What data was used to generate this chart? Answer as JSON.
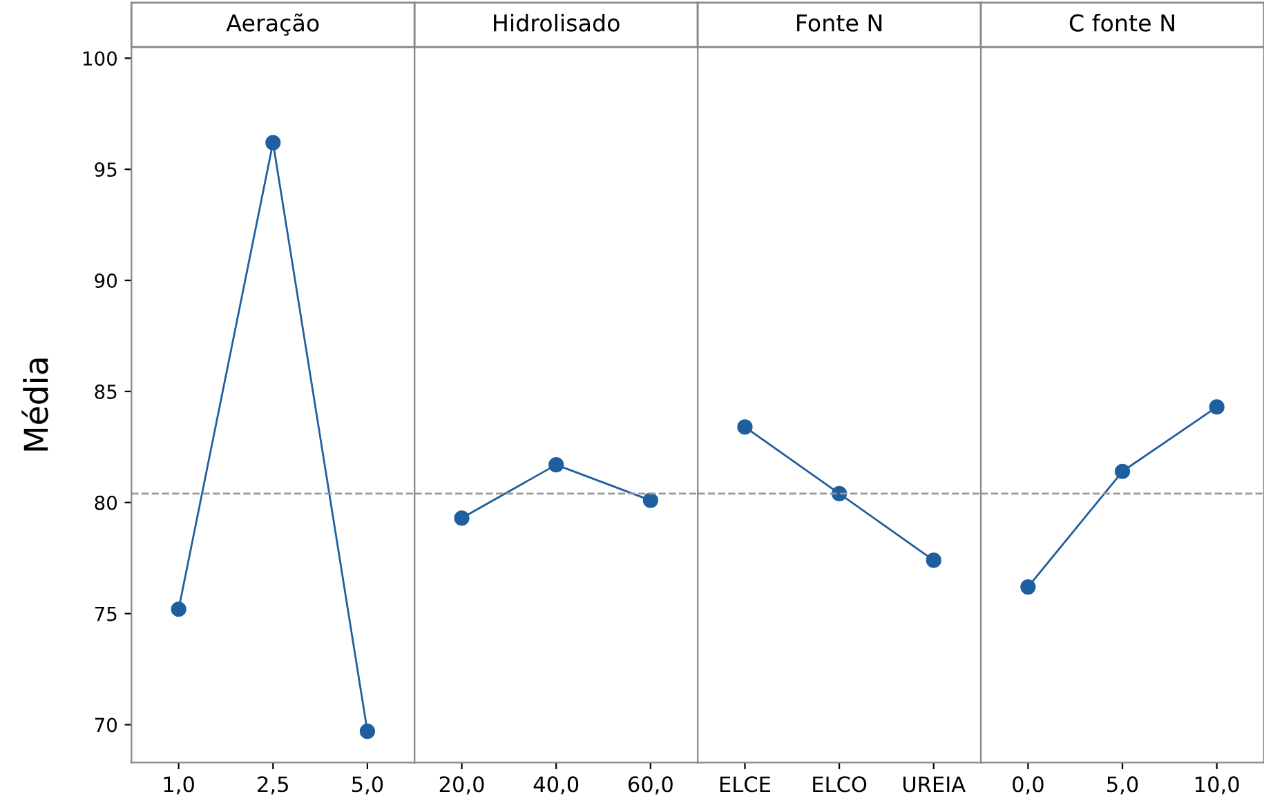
{
  "chart_data": [
    {
      "type": "line",
      "title": "Aeração",
      "ylabel": "Média",
      "categories": [
        "1,0",
        "2,5",
        "5,0"
      ],
      "series": [
        {
          "color": "#1f5f9f",
          "values": [
            75.2,
            96.2,
            69.7
          ]
        }
      ],
      "marker": "circle",
      "ylim": [
        68.3,
        100.5
      ],
      "yticks": [
        70,
        75,
        80,
        85,
        90,
        95,
        100
      ],
      "ref_lines": [
        {
          "axis": "y",
          "value": 80.4,
          "color": "#999999",
          "line_style": "dashed"
        }
      ]
    },
    {
      "type": "line",
      "title": "Hidrolisado",
      "categories": [
        "20,0",
        "40,0",
        "60,0"
      ],
      "series": [
        {
          "color": "#1f5f9f",
          "values": [
            79.3,
            81.7,
            80.1
          ]
        }
      ],
      "marker": "circle",
      "ylim": [
        68.3,
        100.5
      ],
      "tick_labels": "x",
      "ref_lines": [
        {
          "axis": "y",
          "value": 80.4,
          "color": "#999999",
          "line_style": "dashed"
        }
      ]
    },
    {
      "type": "line",
      "title": "Fonte N",
      "categories": [
        "ELCE",
        "ELCO",
        "UREIA"
      ],
      "series": [
        {
          "color": "#1f5f9f",
          "values": [
            83.4,
            80.4,
            77.4
          ]
        }
      ],
      "marker": "circle",
      "ylim": [
        68.3,
        100.5
      ],
      "tick_labels": "x",
      "ref_lines": [
        {
          "axis": "y",
          "value": 80.4,
          "color": "#999999",
          "line_style": "dashed"
        }
      ]
    },
    {
      "type": "line",
      "title": "C fonte N",
      "categories": [
        "0,0",
        "5,0",
        "10,0"
      ],
      "series": [
        {
          "color": "#1f5f9f",
          "values": [
            76.2,
            81.4,
            84.3
          ]
        }
      ],
      "marker": "circle",
      "ylim": [
        68.3,
        100.5
      ],
      "tick_labels": "x",
      "ref_lines": [
        {
          "axis": "y",
          "value": 80.4,
          "color": "#999999",
          "line_style": "dashed"
        }
      ]
    }
  ]
}
